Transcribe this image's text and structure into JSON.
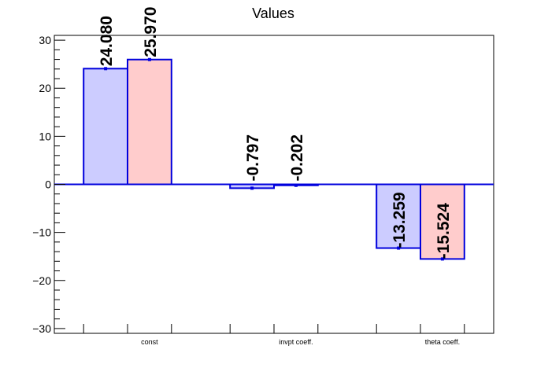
{
  "chart_data": {
    "type": "bar",
    "title": "Values",
    "xlabel": "",
    "ylabel": "",
    "ylim": [
      -31,
      31
    ],
    "yticks": [
      -30,
      -20,
      -10,
      0,
      10,
      20,
      30
    ],
    "ytick_labels": [
      "−30",
      "−20",
      "−10",
      "0",
      "10",
      "20",
      "30"
    ],
    "categories": [
      "const",
      "invpt coeff.",
      "theta coeff."
    ],
    "series": [
      {
        "color": "#ccccff",
        "edge_color": "#0000dd",
        "values": [
          24.08,
          -0.797,
          -13.259
        ],
        "labels": [
          "24.080",
          "-0.797",
          "-13.259"
        ]
      },
      {
        "color": "#ffcccc",
        "edge_color": "#0000dd",
        "values": [
          25.97,
          -0.202,
          -15.524
        ],
        "labels": [
          "25.970",
          "-0.202",
          "-15.524"
        ]
      }
    ],
    "grid": false,
    "legend": "none"
  }
}
